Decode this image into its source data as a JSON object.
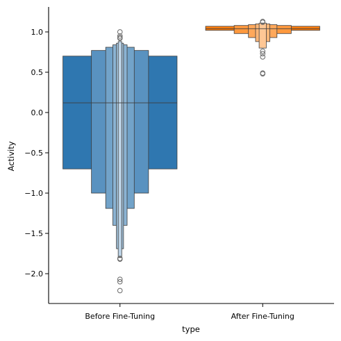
{
  "chart_data": {
    "type": "boxen",
    "xlabel": "type",
    "ylabel": "Activity",
    "ylim": [
      -2.37,
      1.31
    ],
    "yticks": [
      1.0,
      0.5,
      0.0,
      -0.5,
      -1.0,
      -1.5,
      -2.0
    ],
    "ytick_labels": [
      "1.0",
      "0.5",
      "0.0",
      "−0.5",
      "−1.0",
      "−1.5",
      "−2.0"
    ],
    "categories": [
      "Before Fine-Tuning",
      "After Fine-Tuning"
    ],
    "grid": false,
    "series": [
      {
        "category": "Before Fine-Tuning",
        "color": "#2f77b0",
        "median": 0.12,
        "levels": [
          {
            "low": -0.7,
            "high": 0.7,
            "width": 0.8
          },
          {
            "low": -1.0,
            "high": 0.77,
            "width": 0.4
          },
          {
            "low": -1.19,
            "high": 0.81,
            "width": 0.2
          },
          {
            "low": -1.4,
            "high": 0.84,
            "width": 0.1
          },
          {
            "low": -1.69,
            "high": 0.86,
            "width": 0.05
          },
          {
            "low": -1.8,
            "high": 0.88,
            "width": 0.025
          }
        ],
        "outliers": [
          1.0,
          0.95,
          0.93,
          0.92,
          -1.81,
          -1.82,
          -2.07,
          -2.1,
          -2.21
        ]
      },
      {
        "category": "After Fine-Tuning",
        "color": "#ff7f0e",
        "median": 1.04,
        "levels": [
          {
            "low": 1.02,
            "high": 1.07,
            "width": 0.8
          },
          {
            "low": 0.98,
            "high": 1.08,
            "width": 0.4
          },
          {
            "low": 0.93,
            "high": 1.09,
            "width": 0.2
          },
          {
            "low": 0.88,
            "high": 1.1,
            "width": 0.1
          },
          {
            "low": 0.8,
            "high": 1.11,
            "width": 0.05
          }
        ],
        "outliers": [
          1.13,
          1.12,
          0.76,
          0.73,
          0.69,
          0.49,
          0.48
        ]
      }
    ]
  }
}
